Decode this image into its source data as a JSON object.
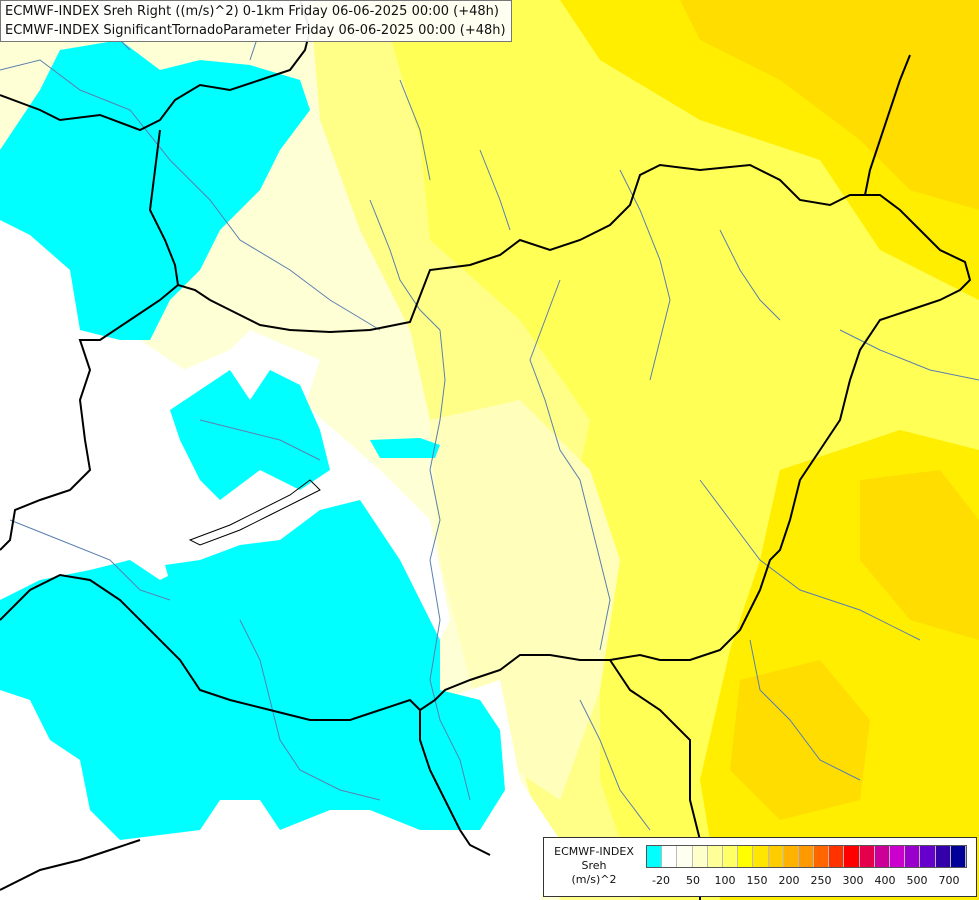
{
  "title_lines": [
    "ECMWF-INDEX Sreh Right ((m/s)^2) 0-1km Friday 06-06-2025 00:00 (+48h)",
    "ECMWF-INDEX SignificantTornadoParameter Friday 06-06-2025 00:00 (+48h)"
  ],
  "legend": {
    "line1": "ECMWF-INDEX",
    "line2": "Sreh",
    "line3": "(m/s)^2",
    "colors": [
      "#00ffff",
      "#ffffff",
      "#fffff0",
      "#ffffcc",
      "#ffff99",
      "#ffff66",
      "#ffff00",
      "#ffe600",
      "#ffcc00",
      "#ffb300",
      "#ff9900",
      "#ff6600",
      "#ff3300",
      "#ff0000",
      "#e6004c",
      "#cc0099",
      "#cc00cc",
      "#9900cc",
      "#6600cc",
      "#3300aa",
      "#000099"
    ],
    "labels": [
      "-20",
      "50",
      "100",
      "150",
      "200",
      "250",
      "300",
      "400",
      "500",
      "700"
    ]
  },
  "map_colors": {
    "base": "#ffffd6",
    "cyan": "#00ffff",
    "light_yellow": "#ffffaa",
    "yellow": "#ffff66",
    "strong_yellow": "#ffee00",
    "orange_yellow": "#ffdd00",
    "border": "#000000",
    "river": "#5a7fb0"
  }
}
